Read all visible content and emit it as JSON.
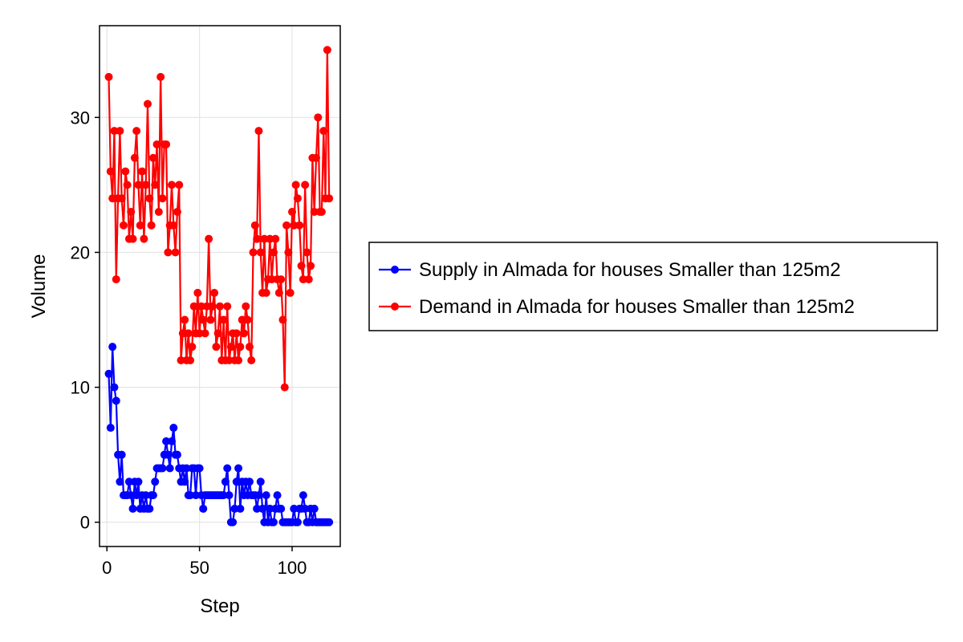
{
  "chart_data": {
    "type": "line",
    "title": "",
    "xlabel": "Step",
    "ylabel": "Volume",
    "xlim": [
      -4,
      126
    ],
    "ylim": [
      -1.8,
      36.8
    ],
    "xticks": [
      0,
      50,
      100
    ],
    "yticks": [
      0,
      10,
      20,
      30
    ],
    "grid": true,
    "legend_position": "right-outside",
    "series": [
      {
        "name": "Supply in Almada for houses Smaller than 125m2",
        "color": "#0000ff",
        "x": [
          1,
          2,
          3,
          4,
          5,
          6,
          7,
          8,
          9,
          10,
          11,
          12,
          13,
          14,
          15,
          16,
          17,
          18,
          19,
          20,
          21,
          22,
          23,
          24,
          25,
          26,
          27,
          28,
          29,
          30,
          31,
          32,
          33,
          34,
          35,
          36,
          37,
          38,
          39,
          40,
          41,
          42,
          43,
          44,
          45,
          46,
          47,
          48,
          49,
          50,
          51,
          52,
          53,
          54,
          55,
          56,
          57,
          58,
          59,
          60,
          61,
          62,
          63,
          64,
          65,
          66,
          67,
          68,
          69,
          70,
          71,
          72,
          73,
          74,
          75,
          76,
          77,
          78,
          79,
          80,
          81,
          82,
          83,
          84,
          85,
          86,
          87,
          88,
          89,
          90,
          91,
          92,
          93,
          94,
          95,
          96,
          97,
          98,
          99,
          100,
          101,
          102,
          103,
          104,
          105,
          106,
          107,
          108,
          109,
          110,
          111,
          112,
          113,
          114,
          115,
          116,
          117,
          118,
          119,
          120
        ],
        "y": [
          11,
          7,
          13,
          10,
          9,
          5,
          3,
          5,
          2,
          2,
          2,
          3,
          2,
          1,
          3,
          2,
          3,
          1,
          2,
          1,
          2,
          1,
          1,
          2,
          2,
          3,
          4,
          4,
          4,
          4,
          5,
          6,
          5,
          4,
          6,
          7,
          5,
          5,
          4,
          3,
          4,
          3,
          4,
          2,
          2,
          4,
          4,
          2,
          4,
          4,
          2,
          1,
          2,
          2,
          2,
          2,
          2,
          2,
          2,
          2,
          2,
          2,
          2,
          3,
          4,
          2,
          0,
          0,
          1,
          3,
          4,
          1,
          3,
          2,
          3,
          2,
          3,
          2,
          2,
          2,
          1,
          2,
          3,
          1,
          0,
          2,
          0,
          1,
          0,
          0,
          1,
          2,
          1,
          1,
          0,
          0,
          0,
          0,
          0,
          0,
          1,
          0,
          0,
          1,
          1,
          2,
          1,
          0,
          0,
          1,
          0,
          1,
          0,
          0,
          0,
          0,
          0,
          0,
          0,
          0
        ]
      },
      {
        "name": "Demand in Almada for houses Smaller than 125m2",
        "color": "#ff0000",
        "x": [
          1,
          2,
          3,
          4,
          5,
          6,
          7,
          8,
          9,
          10,
          11,
          12,
          13,
          14,
          15,
          16,
          17,
          18,
          19,
          20,
          21,
          22,
          23,
          24,
          25,
          26,
          27,
          28,
          29,
          30,
          31,
          32,
          33,
          34,
          35,
          36,
          37,
          38,
          39,
          40,
          41,
          42,
          43,
          44,
          45,
          46,
          47,
          48,
          49,
          50,
          51,
          52,
          53,
          54,
          55,
          56,
          57,
          58,
          59,
          60,
          61,
          62,
          63,
          64,
          65,
          66,
          67,
          68,
          69,
          70,
          71,
          72,
          73,
          74,
          75,
          76,
          77,
          78,
          79,
          80,
          81,
          82,
          83,
          84,
          85,
          86,
          87,
          88,
          89,
          90,
          91,
          92,
          93,
          94,
          95,
          96,
          97,
          98,
          99,
          100,
          101,
          102,
          103,
          104,
          105,
          106,
          107,
          108,
          109,
          110,
          111,
          112,
          113,
          114,
          115,
          116,
          117,
          118,
          119,
          120
        ],
        "y": [
          33,
          26,
          24,
          29,
          18,
          24,
          29,
          24,
          22,
          26,
          25,
          21,
          23,
          21,
          27,
          29,
          25,
          22,
          26,
          21,
          25,
          31,
          24,
          22,
          27,
          25,
          28,
          23,
          33,
          24,
          28,
          28,
          20,
          22,
          25,
          22,
          20,
          23,
          25,
          12,
          14,
          15,
          12,
          14,
          12,
          13,
          16,
          14,
          17,
          14,
          16,
          15,
          14,
          16,
          21,
          15,
          16,
          17,
          13,
          14,
          16,
          12,
          15,
          12,
          16,
          12,
          13,
          14,
          12,
          14,
          12,
          13,
          15,
          14,
          16,
          15,
          13,
          12,
          20,
          22,
          21,
          29,
          20,
          17,
          21,
          17,
          18,
          21,
          18,
          20,
          21,
          18,
          17,
          18,
          15,
          10,
          22,
          20,
          17,
          23,
          22,
          25,
          24,
          22,
          19,
          18,
          25,
          20,
          18,
          19,
          27,
          23,
          27,
          30,
          23,
          23,
          29,
          24,
          35,
          24
        ]
      }
    ]
  }
}
